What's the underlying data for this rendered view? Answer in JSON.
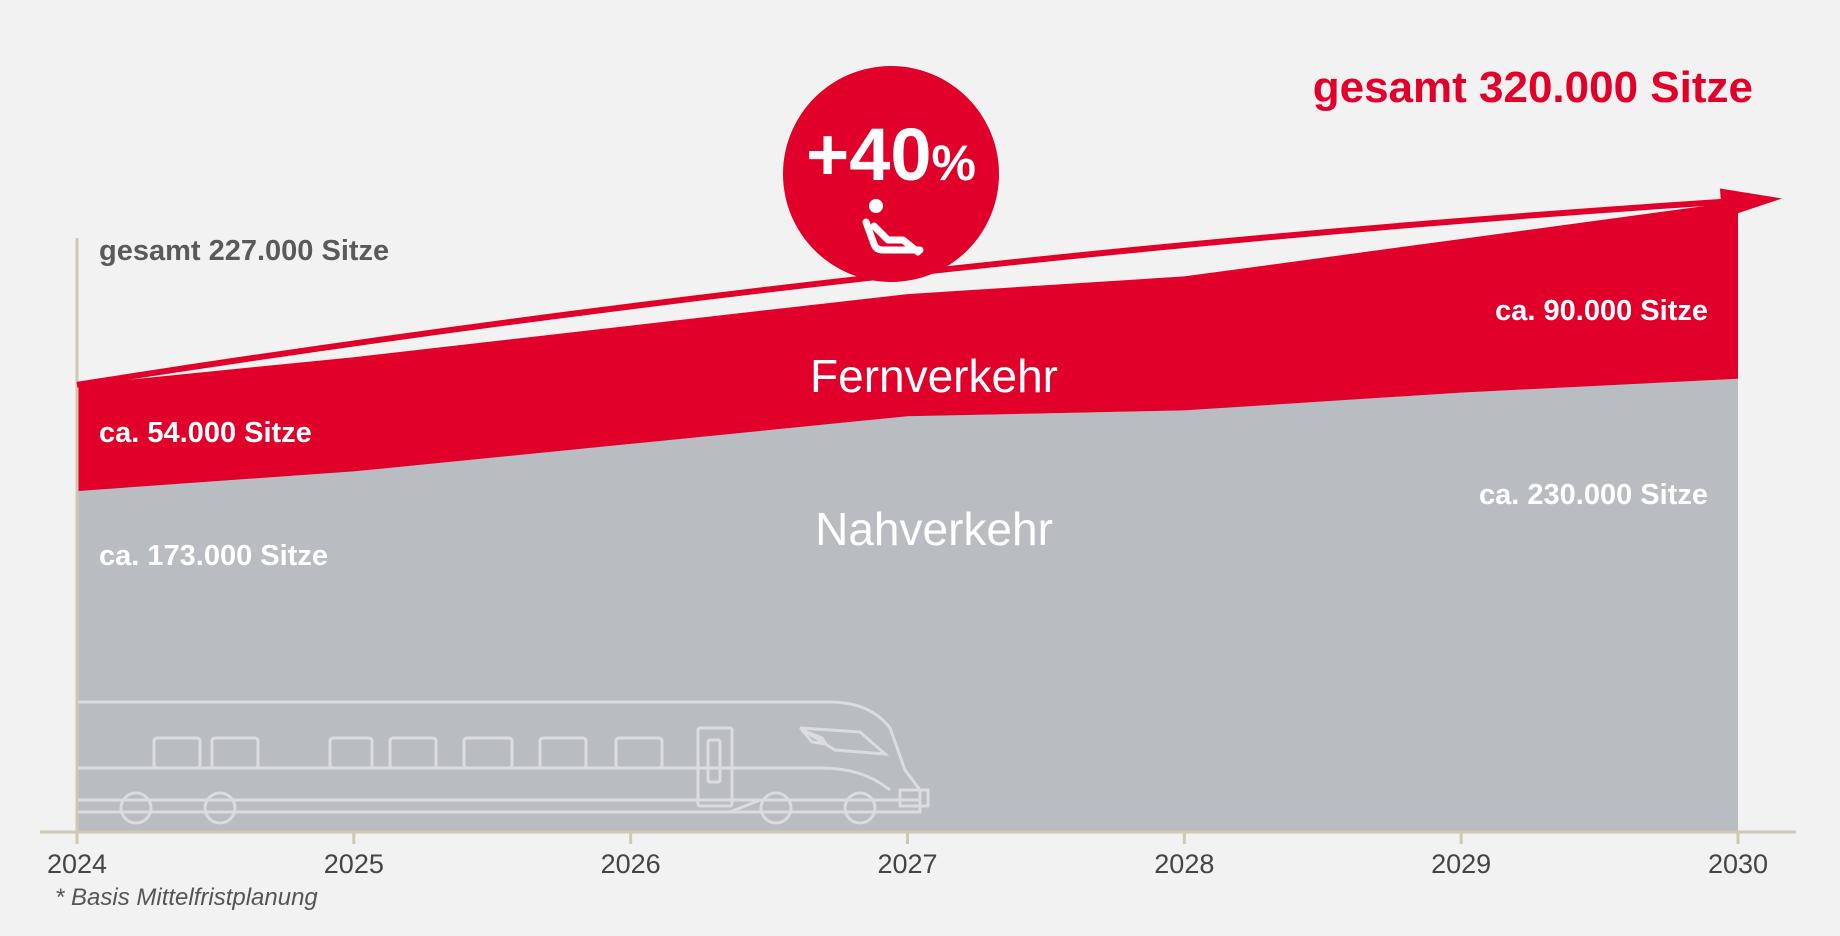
{
  "chart_data": {
    "type": "area",
    "x": [
      2024,
      2025,
      2026,
      2027,
      2028,
      2029,
      2030
    ],
    "series": [
      {
        "name": "Nahverkehr",
        "color": "#b9bcc1",
        "values": [
          173000,
          183000,
          197000,
          211000,
          214000,
          223000,
          230000
        ]
      },
      {
        "name": "Fernverkehr",
        "color": "#e1002a",
        "values": [
          54000,
          58000,
          60000,
          62000,
          68000,
          78000,
          90000
        ]
      }
    ],
    "total_arrow": {
      "start": 227000,
      "end": 320000,
      "color": "#e1002a"
    },
    "ylim": [
      0,
      336000
    ],
    "grid": false,
    "tick_labels": [
      "2024",
      "2025",
      "2026",
      "2027",
      "2028",
      "2029",
      "2030"
    ],
    "annotations": {
      "start_total": "gesamt 227.000 Sitze",
      "end_total": "gesamt 320.000 Sitze",
      "fern_start": "ca. 54.000 Sitze",
      "fern_end": "ca. 90.000 Sitze",
      "nah_start": "ca. 173.000 Sitze",
      "nah_end": "ca. 230.000 Sitze",
      "fern_label": "Fernverkehr",
      "nah_label": "Nahverkehr",
      "badge_number": "+40",
      "badge_percent": "%",
      "footnote": "* Basis Mittelfristplanung"
    }
  },
  "icons": {
    "badge_icon": "seat-icon",
    "illustration": "train-icon"
  },
  "colors": {
    "accent": "#e1002a",
    "nah": "#b9bcc1",
    "axis": "#cfc8b3",
    "background": "#f2f2f2"
  }
}
